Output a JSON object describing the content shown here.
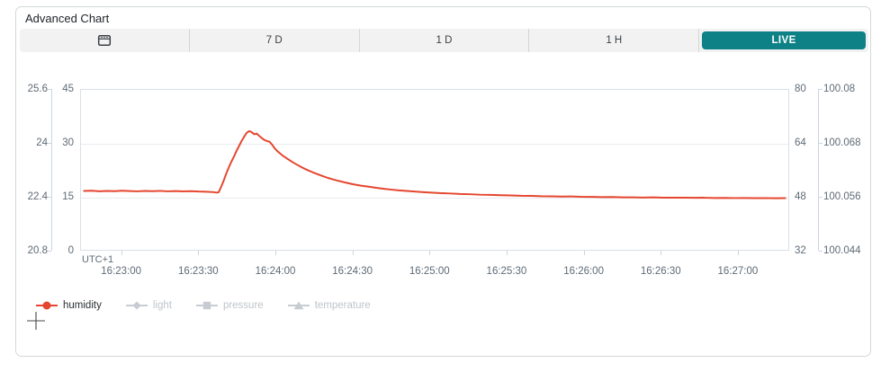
{
  "card": {
    "title": "Advanced Chart"
  },
  "toolbar": {
    "calendar_button": {
      "icon": "calendar-icon"
    },
    "buttons": [
      {
        "label": "7 D",
        "active": false
      },
      {
        "label": "1 D",
        "active": false
      },
      {
        "label": "1 H",
        "active": false
      },
      {
        "label": "LIVE",
        "active": true
      }
    ]
  },
  "colors": {
    "accent_teal": "#0d8185",
    "humidity_red": "#e5462f",
    "inactive_gray": "#c7ccd2",
    "inactive_text": "#bfc5cb",
    "active_text": "#2b2f33",
    "axis_line": "#ccd5e2",
    "gridline": "#e9ebef",
    "axis_text": "#5f6b76"
  },
  "chart_data": {
    "type": "line",
    "title": "Advanced Chart",
    "grid": true,
    "legend_position": "bottom-left",
    "x_axis": {
      "timezone_label": "UTC+1",
      "range_seconds": [
        0,
        276
      ],
      "start_time": "16:22:44",
      "end_time": "16:27:20",
      "ticks": [
        {
          "t": 16,
          "label": "16:23:00"
        },
        {
          "t": 46,
          "label": "16:23:30"
        },
        {
          "t": 76,
          "label": "16:24:00"
        },
        {
          "t": 106,
          "label": "16:24:30"
        },
        {
          "t": 136,
          "label": "16:25:00"
        },
        {
          "t": 166,
          "label": "16:25:30"
        },
        {
          "t": 196,
          "label": "16:26:00"
        },
        {
          "t": 226,
          "label": "16:26:30"
        },
        {
          "t": 256,
          "label": "16:27:00"
        }
      ]
    },
    "y_axes": {
      "left_outer": {
        "series": "temperature",
        "labels": [
          "25.6",
          "24",
          "22.4",
          "20.8"
        ],
        "range": [
          20.8,
          25.6
        ]
      },
      "left_inner": {
        "series": "humidity",
        "labels": [
          "45",
          "30",
          "15",
          "0"
        ],
        "range": [
          0,
          45
        ]
      },
      "right_inner": {
        "series": "light",
        "labels": [
          "80",
          "64",
          "48",
          "32"
        ],
        "range": [
          32,
          80
        ]
      },
      "right_outer": {
        "series": "pressure",
        "labels": [
          "100.08",
          "100.068",
          "100.056",
          "100.044"
        ],
        "range": [
          100.044,
          100.08
        ]
      }
    },
    "series": [
      {
        "name": "humidity",
        "color": "#e5462f",
        "visible": true,
        "points": [
          [
            0,
            16.55
          ],
          [
            3,
            16.62
          ],
          [
            6,
            16.48
          ],
          [
            9,
            16.56
          ],
          [
            12,
            16.5
          ],
          [
            15,
            16.62
          ],
          [
            18,
            16.52
          ],
          [
            21,
            16.45
          ],
          [
            24,
            16.56
          ],
          [
            27,
            16.5
          ],
          [
            30,
            16.58
          ],
          [
            33,
            16.44
          ],
          [
            36,
            16.52
          ],
          [
            39,
            16.42
          ],
          [
            42,
            16.5
          ],
          [
            45,
            16.4
          ],
          [
            48,
            16.36
          ],
          [
            51,
            16.22
          ],
          [
            52,
            16.1
          ],
          [
            53,
            16.18
          ],
          [
            54,
            17.8
          ],
          [
            55,
            19.5
          ],
          [
            56,
            21.5
          ],
          [
            57,
            23.2
          ],
          [
            58,
            24.8
          ],
          [
            59,
            26.2
          ],
          [
            60,
            27.8
          ],
          [
            61,
            29.2
          ],
          [
            62,
            30.6
          ],
          [
            63,
            31.8
          ],
          [
            64,
            32.9
          ],
          [
            65,
            33.4
          ],
          [
            66,
            33.1
          ],
          [
            67,
            32.5
          ],
          [
            68,
            32.7
          ],
          [
            69,
            32.0
          ],
          [
            70,
            31.4
          ],
          [
            71,
            30.9
          ],
          [
            72,
            30.6
          ],
          [
            73,
            30.4
          ],
          [
            74,
            29.6
          ],
          [
            75,
            28.6
          ],
          [
            76,
            27.8
          ],
          [
            78,
            26.6
          ],
          [
            80,
            25.62
          ],
          [
            82,
            24.7
          ],
          [
            84,
            23.88
          ],
          [
            86,
            23.1
          ],
          [
            88,
            22.42
          ],
          [
            90,
            21.8
          ],
          [
            92,
            21.24
          ],
          [
            94,
            20.72
          ],
          [
            96,
            20.22
          ],
          [
            98,
            19.8
          ],
          [
            100,
            19.42
          ],
          [
            103,
            18.9
          ],
          [
            106,
            18.42
          ],
          [
            109,
            18.04
          ],
          [
            112,
            17.76
          ],
          [
            115,
            17.44
          ],
          [
            118,
            17.16
          ],
          [
            121,
            16.92
          ],
          [
            124,
            16.72
          ],
          [
            127,
            16.54
          ],
          [
            130,
            16.4
          ],
          [
            133,
            16.26
          ],
          [
            136,
            16.12
          ],
          [
            140,
            15.96
          ],
          [
            144,
            15.84
          ],
          [
            148,
            15.7
          ],
          [
            152,
            15.62
          ],
          [
            156,
            15.5
          ],
          [
            160,
            15.46
          ],
          [
            164,
            15.34
          ],
          [
            168,
            15.3
          ],
          [
            172,
            15.2
          ],
          [
            176,
            15.18
          ],
          [
            180,
            15.08
          ],
          [
            184,
            15.06
          ],
          [
            188,
            14.98
          ],
          [
            192,
            14.99
          ],
          [
            196,
            14.9
          ],
          [
            200,
            14.88
          ],
          [
            204,
            14.82
          ],
          [
            208,
            14.84
          ],
          [
            212,
            14.76
          ],
          [
            216,
            14.78
          ],
          [
            220,
            14.71
          ],
          [
            224,
            14.74
          ],
          [
            228,
            14.68
          ],
          [
            232,
            14.66
          ],
          [
            236,
            14.68
          ],
          [
            240,
            14.62
          ],
          [
            244,
            14.64
          ],
          [
            248,
            14.58
          ],
          [
            252,
            14.6
          ],
          [
            256,
            14.55
          ],
          [
            260,
            14.57
          ],
          [
            264,
            14.52
          ],
          [
            268,
            14.54
          ],
          [
            272,
            14.5
          ],
          [
            276,
            14.52
          ]
        ]
      },
      {
        "name": "light",
        "marker": "diamond",
        "visible": false
      },
      {
        "name": "pressure",
        "marker": "square",
        "visible": false
      },
      {
        "name": "temperature",
        "marker": "triangle",
        "visible": false
      }
    ],
    "legend": [
      {
        "label": "humidity",
        "marker": "circle",
        "active": true
      },
      {
        "label": "light",
        "marker": "diamond",
        "active": false
      },
      {
        "label": "pressure",
        "marker": "square",
        "active": false
      },
      {
        "label": "temperature",
        "marker": "triangle",
        "active": false
      }
    ]
  }
}
